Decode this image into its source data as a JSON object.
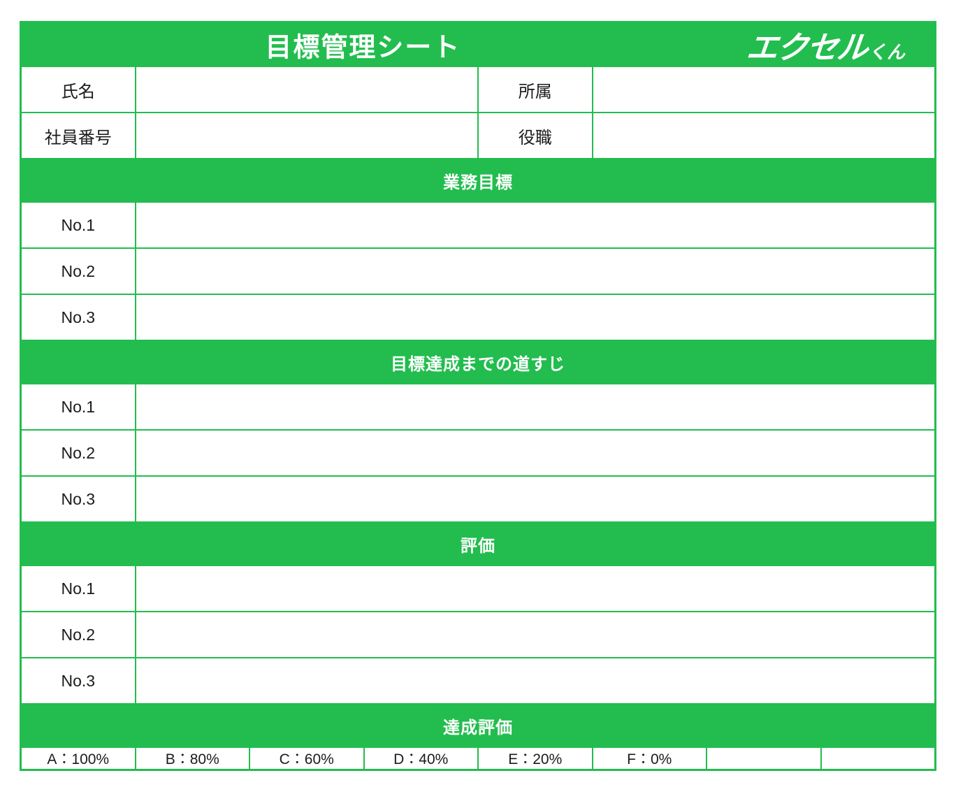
{
  "colors": {
    "green": "#22bd4e",
    "text": "#1b1b1b",
    "cell_bg": "#ffffff"
  },
  "header": {
    "title": "目標管理シート",
    "logo_main": "エクセル",
    "logo_suffix": "くん"
  },
  "info": {
    "rows": [
      {
        "left_label": "氏名",
        "left_value": "",
        "right_label": "所属",
        "right_value": ""
      },
      {
        "left_label": "社員番号",
        "left_value": "",
        "right_label": "役職",
        "right_value": ""
      }
    ]
  },
  "sections": [
    {
      "header": "業務目標",
      "rows": [
        {
          "label": "No.1",
          "value": ""
        },
        {
          "label": "No.2",
          "value": ""
        },
        {
          "label": "No.3",
          "value": ""
        }
      ]
    },
    {
      "header": "目標達成までの道すじ",
      "rows": [
        {
          "label": "No.1",
          "value": ""
        },
        {
          "label": "No.2",
          "value": ""
        },
        {
          "label": "No.3",
          "value": ""
        }
      ]
    },
    {
      "header": "評価",
      "rows": [
        {
          "label": "No.1",
          "value": ""
        },
        {
          "label": "No.2",
          "value": ""
        },
        {
          "label": "No.3",
          "value": ""
        }
      ]
    }
  ],
  "achievement": {
    "header": "達成評価",
    "cells": [
      "A：100%",
      "B：80%",
      "C：60%",
      "D：40%",
      "E：20%",
      "F：0%",
      "",
      ""
    ]
  }
}
